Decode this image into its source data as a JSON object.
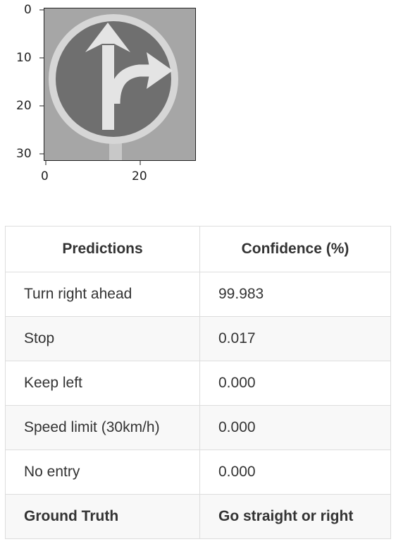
{
  "figure": {
    "y_ticks": [
      "0",
      "10",
      "20",
      "30"
    ],
    "x_ticks": [
      "0",
      "20"
    ]
  },
  "table": {
    "headers": [
      "Predictions",
      "Confidence (%)"
    ],
    "rows": [
      {
        "label": "Turn right ahead",
        "value": "99.983"
      },
      {
        "label": "Stop",
        "value": "0.017"
      },
      {
        "label": "Keep left",
        "value": "0.000"
      },
      {
        "label": "Speed limit (30km/h)",
        "value": "0.000"
      },
      {
        "label": "No entry",
        "value": "0.000"
      }
    ],
    "ground_truth": {
      "label": "Ground Truth",
      "value": "Go straight or right"
    }
  }
}
